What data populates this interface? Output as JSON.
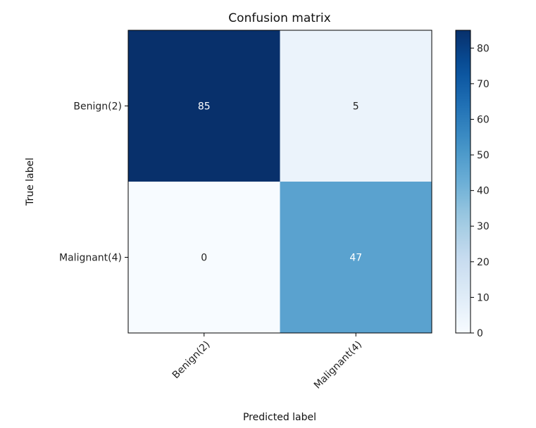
{
  "chart_data": {
    "type": "heatmap",
    "title": "Confusion matrix",
    "xlabel": "Predicted label",
    "ylabel": "True label",
    "x_categories": [
      "Benign(2)",
      "Malignant(4)"
    ],
    "y_categories": [
      "Benign(2)",
      "Malignant(4)"
    ],
    "values": [
      [
        85,
        5
      ],
      [
        0,
        47
      ]
    ],
    "colormap": "Blues",
    "colormap_stops": [
      "#f7fbff",
      "#deebf7",
      "#c6dbef",
      "#9ecae1",
      "#6baed6",
      "#4292c6",
      "#2171b5",
      "#08519c",
      "#08306b"
    ],
    "vmin": 0,
    "vmax": 85,
    "colorbar_ticks": [
      0,
      10,
      20,
      30,
      40,
      50,
      60,
      70,
      80
    ],
    "grid": false
  }
}
